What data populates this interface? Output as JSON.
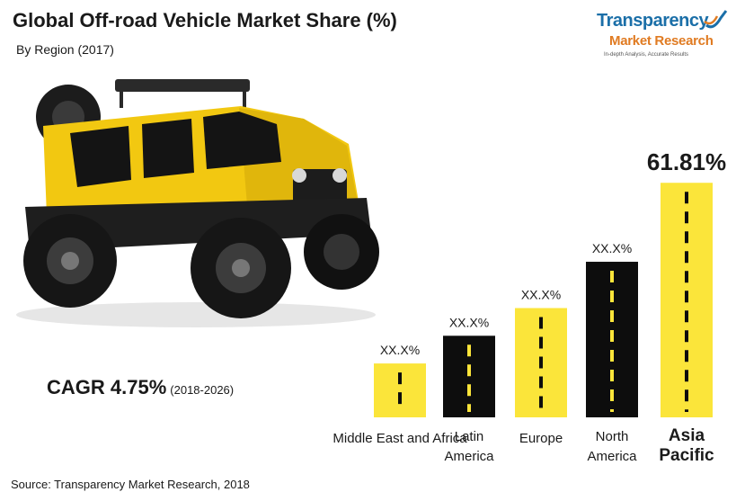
{
  "title": "Global Off-road Vehicle Market Share (%)",
  "subtitle": "By Region (2017)",
  "logo": {
    "line1": "Transparency",
    "line2": "Market Research",
    "tagline": "In-depth Analysis, Accurate Results"
  },
  "cagr": {
    "label": "CAGR 4.75%",
    "period": "(2018-2026)"
  },
  "source": "Source: Transparency Market Research, 2018",
  "colors": {
    "yellow": "#fbe53a",
    "black": "#0d0d0d",
    "logo_blue": "#1b6fa8",
    "logo_orange": "#e07b22"
  },
  "chart_data": {
    "type": "bar",
    "title": "Global Off-road Vehicle Market Share (%)",
    "subtitle": "By Region (2017)",
    "categories": [
      "Middle East and Africa",
      "Latin America",
      "Europe",
      "North America",
      "Asia Pacific"
    ],
    "category_lines": [
      [
        "Middle East and Africa"
      ],
      [
        "Latin",
        "America"
      ],
      [
        "Europe"
      ],
      [
        "North",
        "America"
      ],
      [
        "Asia",
        "Pacific"
      ]
    ],
    "data_labels": [
      "XX.X%",
      "XX.X%",
      "XX.X%",
      "XX.X%",
      "61.81%"
    ],
    "values": [
      14.2,
      21.5,
      28.8,
      41.0,
      61.81
    ],
    "bar_colors": [
      "#fbe53a",
      "#0d0d0d",
      "#fbe53a",
      "#0d0d0d",
      "#fbe53a"
    ],
    "ylim": [
      0,
      64
    ],
    "grid": false,
    "legend": "none"
  }
}
